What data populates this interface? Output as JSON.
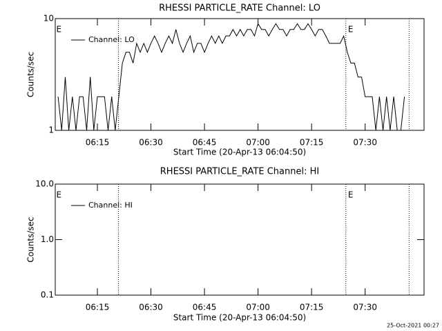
{
  "chart_data": [
    {
      "type": "line",
      "title": "RHESSI PARTICLE_RATE Channel: LO",
      "x_label": "Start Time (20-Apr-13 06:04:50)",
      "y_label": "Counts/sec",
      "log_y": true,
      "ylim": [
        1,
        10
      ],
      "yticks": [
        1,
        10
      ],
      "xlim": [
        3.2,
        106.5
      ],
      "xticks": [
        {
          "value": 15,
          "label": "06:15"
        },
        {
          "value": 30,
          "label": "06:30"
        },
        {
          "value": 45,
          "label": "06:45"
        },
        {
          "value": 60,
          "label": "07:00"
        },
        {
          "value": 75,
          "label": "07:15"
        },
        {
          "value": 90,
          "label": "07:30"
        }
      ],
      "vlines": [
        20.9,
        84.6,
        102.3
      ],
      "flags": [
        {
          "x": 3.5,
          "label": "E"
        },
        {
          "x": 85.2,
          "label": "E"
        }
      ],
      "x": [
        4,
        5,
        6,
        7,
        8,
        9,
        10,
        11,
        12,
        13,
        14,
        15,
        16,
        17,
        18,
        19,
        20,
        21,
        22,
        23,
        24,
        25,
        26,
        27,
        28,
        29,
        30,
        31,
        32,
        33,
        34,
        35,
        36,
        37,
        38,
        39,
        40,
        41,
        42,
        43,
        44,
        45,
        46,
        47,
        48,
        49,
        50,
        51,
        52,
        53,
        54,
        55,
        56,
        57,
        58,
        59,
        60,
        61,
        62,
        63,
        64,
        65,
        66,
        67,
        68,
        69,
        70,
        71,
        72,
        73,
        74,
        75,
        76,
        77,
        78,
        79,
        80,
        81,
        82,
        83,
        84,
        85,
        86,
        87,
        88,
        89,
        90,
        91,
        92,
        93,
        94,
        95,
        96,
        97,
        98,
        99,
        100,
        101
      ],
      "series": [
        {
          "name": "Channel: LO",
          "color": "#000000",
          "values": [
            2,
            1,
            3,
            1,
            2,
            1,
            2,
            2,
            1,
            3,
            1,
            2,
            2,
            2,
            1,
            2,
            1,
            2,
            4,
            5,
            5,
            4,
            6,
            5,
            6,
            5,
            6,
            7,
            6,
            5,
            6,
            7,
            6,
            8,
            6,
            5,
            6,
            7,
            5,
            6,
            6,
            5,
            6,
            7,
            6,
            7,
            6,
            7,
            7,
            8,
            7,
            8,
            7,
            8,
            8,
            7,
            9,
            8,
            8,
            7,
            8,
            9,
            8,
            8,
            7,
            8,
            8,
            9,
            8,
            8,
            9,
            8,
            7,
            8,
            8,
            7,
            6,
            6,
            6,
            6,
            7,
            5,
            4,
            4,
            3,
            3,
            2,
            2,
            2,
            1,
            2,
            1,
            2,
            1,
            2,
            1,
            1,
            2
          ]
        }
      ]
    },
    {
      "type": "line",
      "title": "RHESSI PARTICLE_RATE Channel: HI",
      "x_label": "Start Time (20-Apr-13 06:04:50)",
      "y_label": "Counts/sec",
      "log_y": true,
      "ylim": [
        0.1,
        10
      ],
      "yticks": [
        {
          "value": 0.1,
          "label": "0.1"
        },
        {
          "value": 1,
          "label": "1.0"
        },
        {
          "value": 10,
          "label": "10.0"
        }
      ],
      "xlim": [
        3.2,
        106.5
      ],
      "xticks": [
        {
          "value": 15,
          "label": "06:15"
        },
        {
          "value": 30,
          "label": "06:30"
        },
        {
          "value": 45,
          "label": "06:45"
        },
        {
          "value": 60,
          "label": "07:00"
        },
        {
          "value": 75,
          "label": "07:15"
        },
        {
          "value": 90,
          "label": "07:30"
        }
      ],
      "vlines": [
        20.9,
        84.6,
        102.3
      ],
      "flags": [
        {
          "x": 3.5,
          "label": "E"
        },
        {
          "x": 85.2,
          "label": "E"
        }
      ],
      "x": [],
      "series": [
        {
          "name": "Channel: HI",
          "color": "#000000",
          "values": []
        }
      ]
    }
  ],
  "footer": "25-Oct-2021 00:27"
}
